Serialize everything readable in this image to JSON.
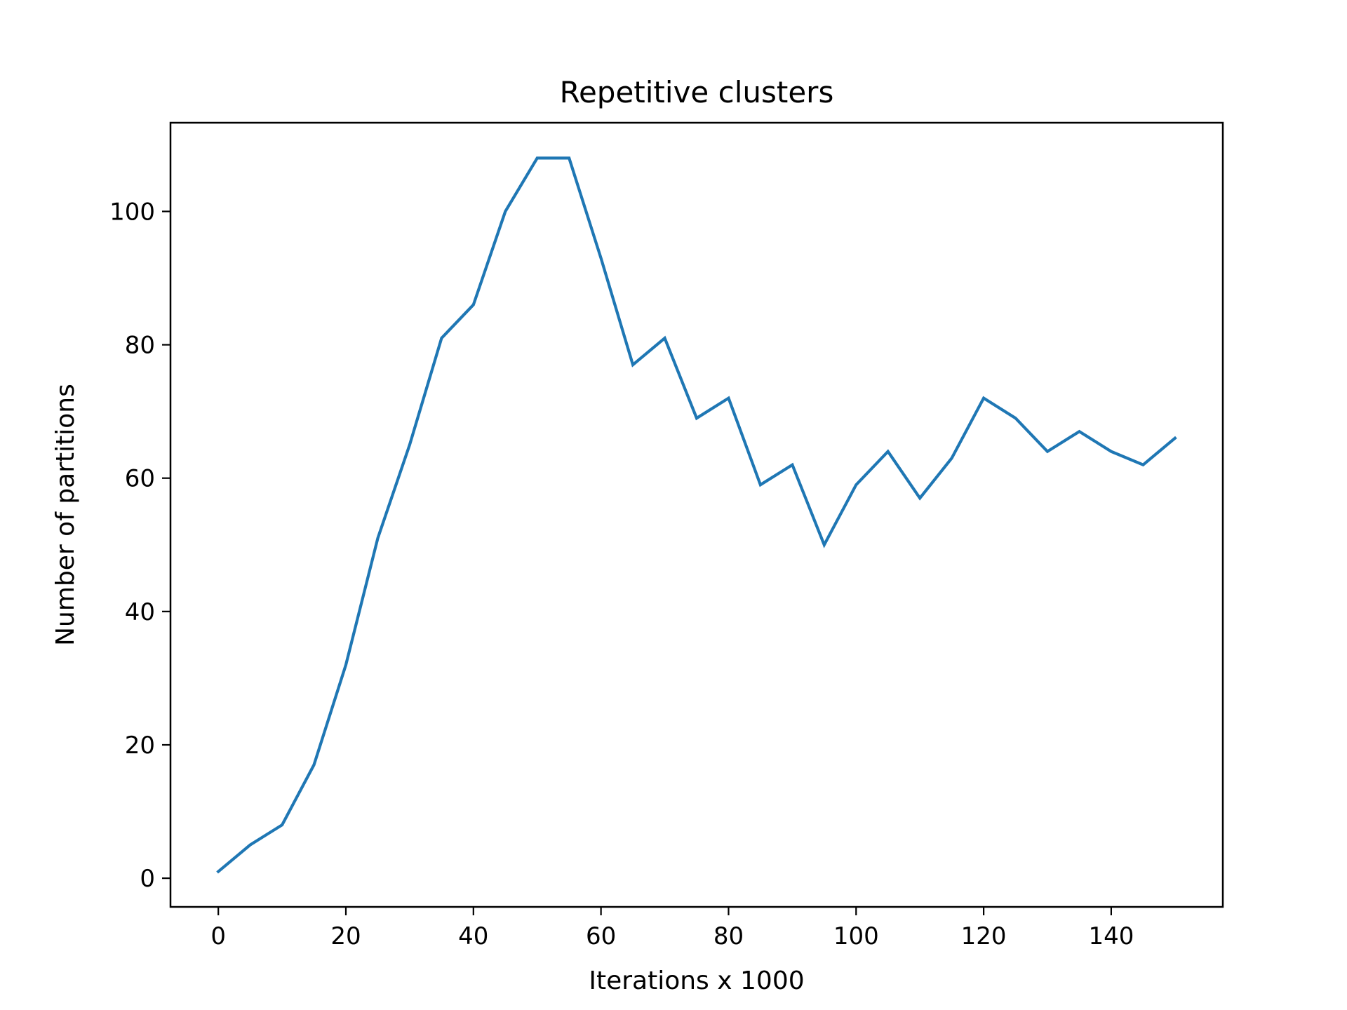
{
  "chart_data": {
    "type": "line",
    "title": "Repetitive clusters",
    "xlabel": "Iterations x 1000",
    "ylabel": "Number of partitions",
    "xlim": [
      -7.5,
      157.5
    ],
    "ylim": [
      -4.3,
      113.3
    ],
    "xticks": [
      0,
      20,
      40,
      60,
      80,
      100,
      120,
      140
    ],
    "yticks": [
      0,
      20,
      40,
      60,
      80,
      100
    ],
    "grid": false,
    "series": [
      {
        "color": "#1f77b4",
        "x": [
          0,
          5,
          10,
          15,
          20,
          25,
          30,
          35,
          40,
          45,
          50,
          55,
          60,
          65,
          70,
          75,
          80,
          85,
          90,
          95,
          100,
          105,
          110,
          115,
          120,
          125,
          130,
          135,
          140,
          145,
          150
        ],
        "y": [
          1,
          5,
          8,
          17,
          32,
          51,
          65,
          81,
          86,
          100,
          108,
          108,
          93,
          77,
          81,
          69,
          72,
          59,
          62,
          50,
          59,
          64,
          57,
          63,
          72,
          69,
          64,
          67,
          64,
          62,
          66
        ]
      }
    ]
  }
}
